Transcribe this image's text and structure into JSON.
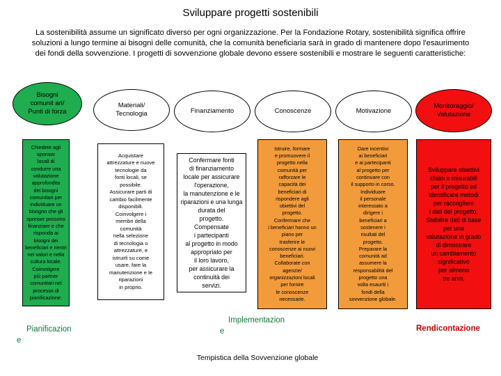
{
  "title": "Sviluppare progetti sostenibili",
  "intro": "La sostenibilità assume un significato diverso per ogni organizzazione. Per la Fondazione Rotary, sostenibilità significa offrire soluzioni a lungo termine ai bisogni delle comunità, che la comunità beneficiaria sarà in grado di mantenere dopo l'esaurimento dei fondi della sovvenzione. I progetti di sovvenzione globale devono essere sostenibili e mostrare le seguenti caratteristiche:",
  "colors": {
    "green": "#1fad4f",
    "orange": "#f29b3b",
    "red": "#f20f0f",
    "white": "#ffffff"
  },
  "columns": [
    {
      "heading": "Bisogni\ncomunit          ari/\nPunti di forza",
      "body": "Chiedete agli\nsponsor\nlocali di\ncondurre una\nvalutazione\napprofondita\ndei bisogni\ncomunitari per\nindividuare un\nbisogno che gli\nsponsor possono\nfinanziare e che\nrisponda ai\nbisogni dei\nbeneficiari e rientri\nnei valori e nella\ncultura locale.\nCoinvolgere\npiù partner\ncomunitari nel\nprocesso di\npianificazione."
    },
    {
      "heading": "Materiali/\nTecnologia",
      "body": "Acquistare\nattrezzature e nuove\ntecnologie da\nfonti locali, se\npossibile.\nAssicurare parti di\ncambio facilmente\ndisponibili.\nCoinvolgere i\nmembri della\ncomunità\nnella selezione\ndi tecnologia o\nattrezzature, e\nistruirli su come\nusare, fare la\nmanutenzione e le\nriparazioni\nin proprio."
    },
    {
      "heading": "Finanziamento",
      "body": "Confermare fonti\ndi finanziamento\nlocale per assicurare\nl'operazione,\nla manutenzione e le\nriparazioni e una lunga\ndurata del\nprogetto.\nCompensate\ni partecipanti\nal progetto in modo\nappropriato per\nil loro lavoro,\nper assicurare la\ncontinuità dei\nservizi."
    },
    {
      "heading": "Conoscenze",
      "body": "Istruire, formare\ne promuovere il\nprogetto nella\ncomunità per\nrafforzare le\ncapacità dei\nbeneficiari di\nrispondere agli\nobiettivi del\nprogetto.\nConfermare che\ni beneficiari hanno un\npiano per\ntrasferire le\nconoscenze ai nuovi\nbeneficiari.\nCollaborate con\nagenzie/\norganizzazioni locali\nper fornire\nle conoscenze\nnecessarie."
    },
    {
      "heading": "Motivazione",
      "body": "Dare incentivi\nai beneficiari\ne ai partecipanti\nal progetto per\ncontinuare con\nil supporto in corso.\nIndividuare\nil personale\ninteressato a\ndirigere i\nbeneficiari a\nsostenere i\nrisultati del\nprogetto.\nPreparare la\ncomunità ad\nassumere la\nresponsabilità del\nprogetto una\nvolta esauriti i\nfondi della\nsovvenzione globale."
    },
    {
      "heading": "Monitoraggio/\nValutazione",
      "body": "Sviluppare obiettivi\nchiari e misurabili\nper il progetto ed\nidentificare metodi\nper raccogliere\ni dati del progetto.\nStabilire dati di base\nper una\nvalutazione in grado\ndi dimostrare\nun cambiamento\nsignificativo\nper almeno\ntre anni."
    }
  ],
  "phases": {
    "planning": "Pianificazion\ne",
    "implementation": "Implementazion\ne",
    "reporting": "Rendicontazione"
  },
  "footer": "Tempistica della Sovvenzione globale"
}
